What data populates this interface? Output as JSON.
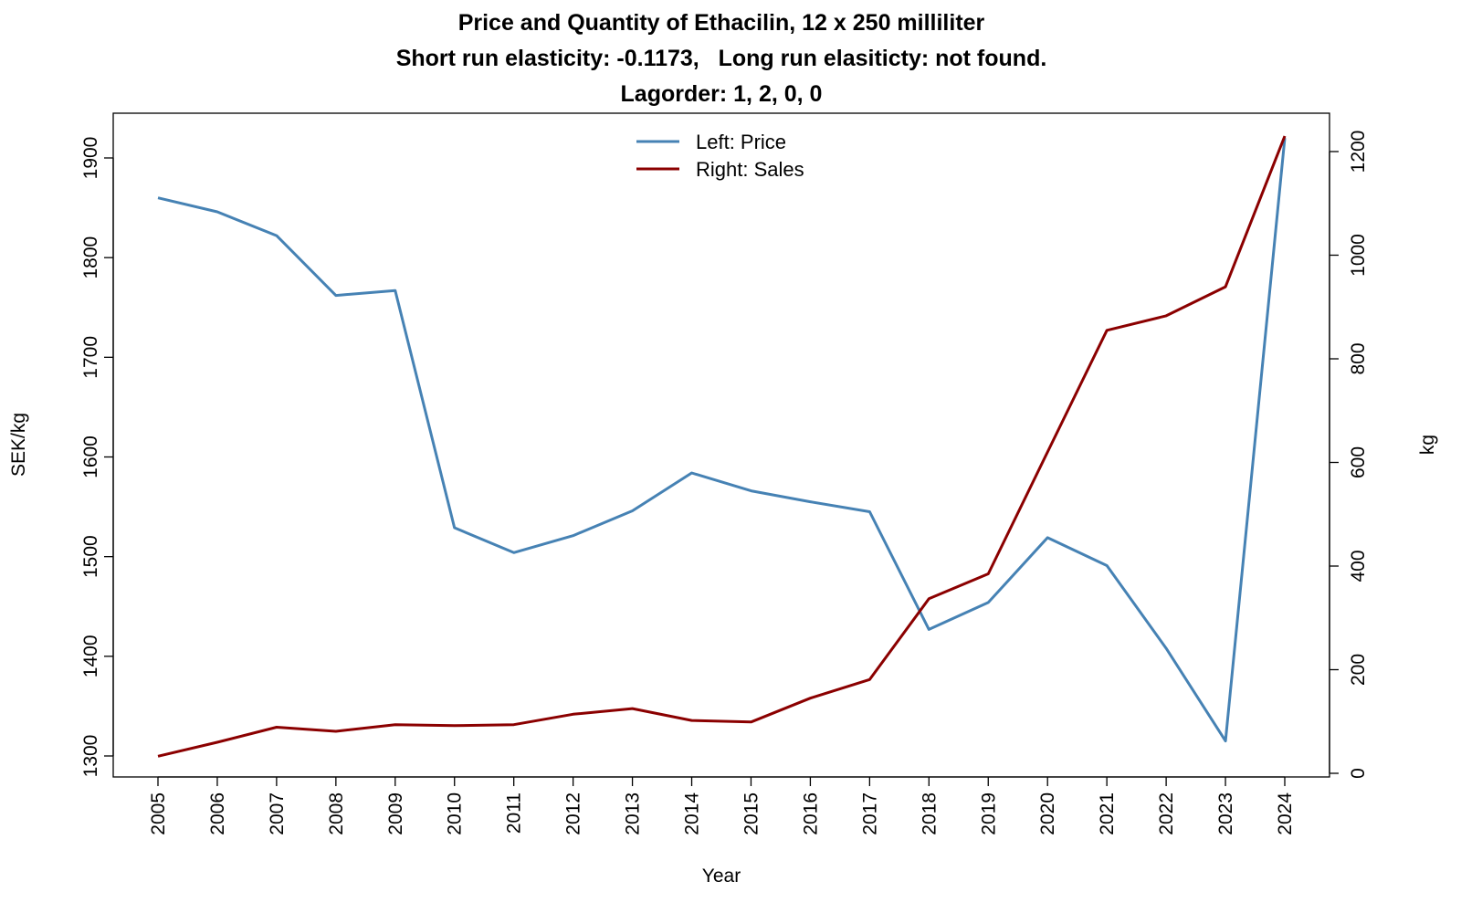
{
  "chart_data": {
    "type": "line",
    "title": "Price and Quantity of Ethacilin, 12 x 250 milliliter",
    "subtitle": "Short run elasticity: -0.1173,   Long run elasiticty: not found.",
    "subtitle2": "Lagorder: 1, 2, 0, 0",
    "xlabel": "Year",
    "ylabel_left": "SEK/kg",
    "ylabel_right": "kg",
    "categories": [
      "2005",
      "2006",
      "2007",
      "2008",
      "2009",
      "2010",
      "2011",
      "2012",
      "2013",
      "2014",
      "2015",
      "2016",
      "2017",
      "2018",
      "2019",
      "2020",
      "2021",
      "2022",
      "2023",
      "2024"
    ],
    "ylim_left": [
      1300,
      1900
    ],
    "yticks_left": [
      "1300",
      "1400",
      "1500",
      "1600",
      "1700",
      "1800",
      "1900"
    ],
    "ylim_right": [
      0,
      1200
    ],
    "yticks_right": [
      "0",
      "200",
      "400",
      "600",
      "800",
      "1000",
      "1200"
    ],
    "legend_position": "top-center",
    "grid": false,
    "series": [
      {
        "name": "Left: Price",
        "axis": "left",
        "color": "#4682B4",
        "values": [
          1860,
          1846,
          1822,
          1762,
          1767,
          1529,
          1504,
          1521,
          1546,
          1584,
          1566,
          1555,
          1545,
          1427,
          1454,
          1519,
          1491,
          1408,
          1315,
          1920
        ]
      },
      {
        "name": "Right: Sales",
        "axis": "right",
        "color": "#8B0000",
        "values": [
          33,
          60,
          89,
          81,
          94,
          92,
          94,
          114,
          125,
          102,
          99,
          145,
          181,
          337,
          385,
          620,
          855,
          883,
          939,
          1230
        ]
      }
    ]
  }
}
